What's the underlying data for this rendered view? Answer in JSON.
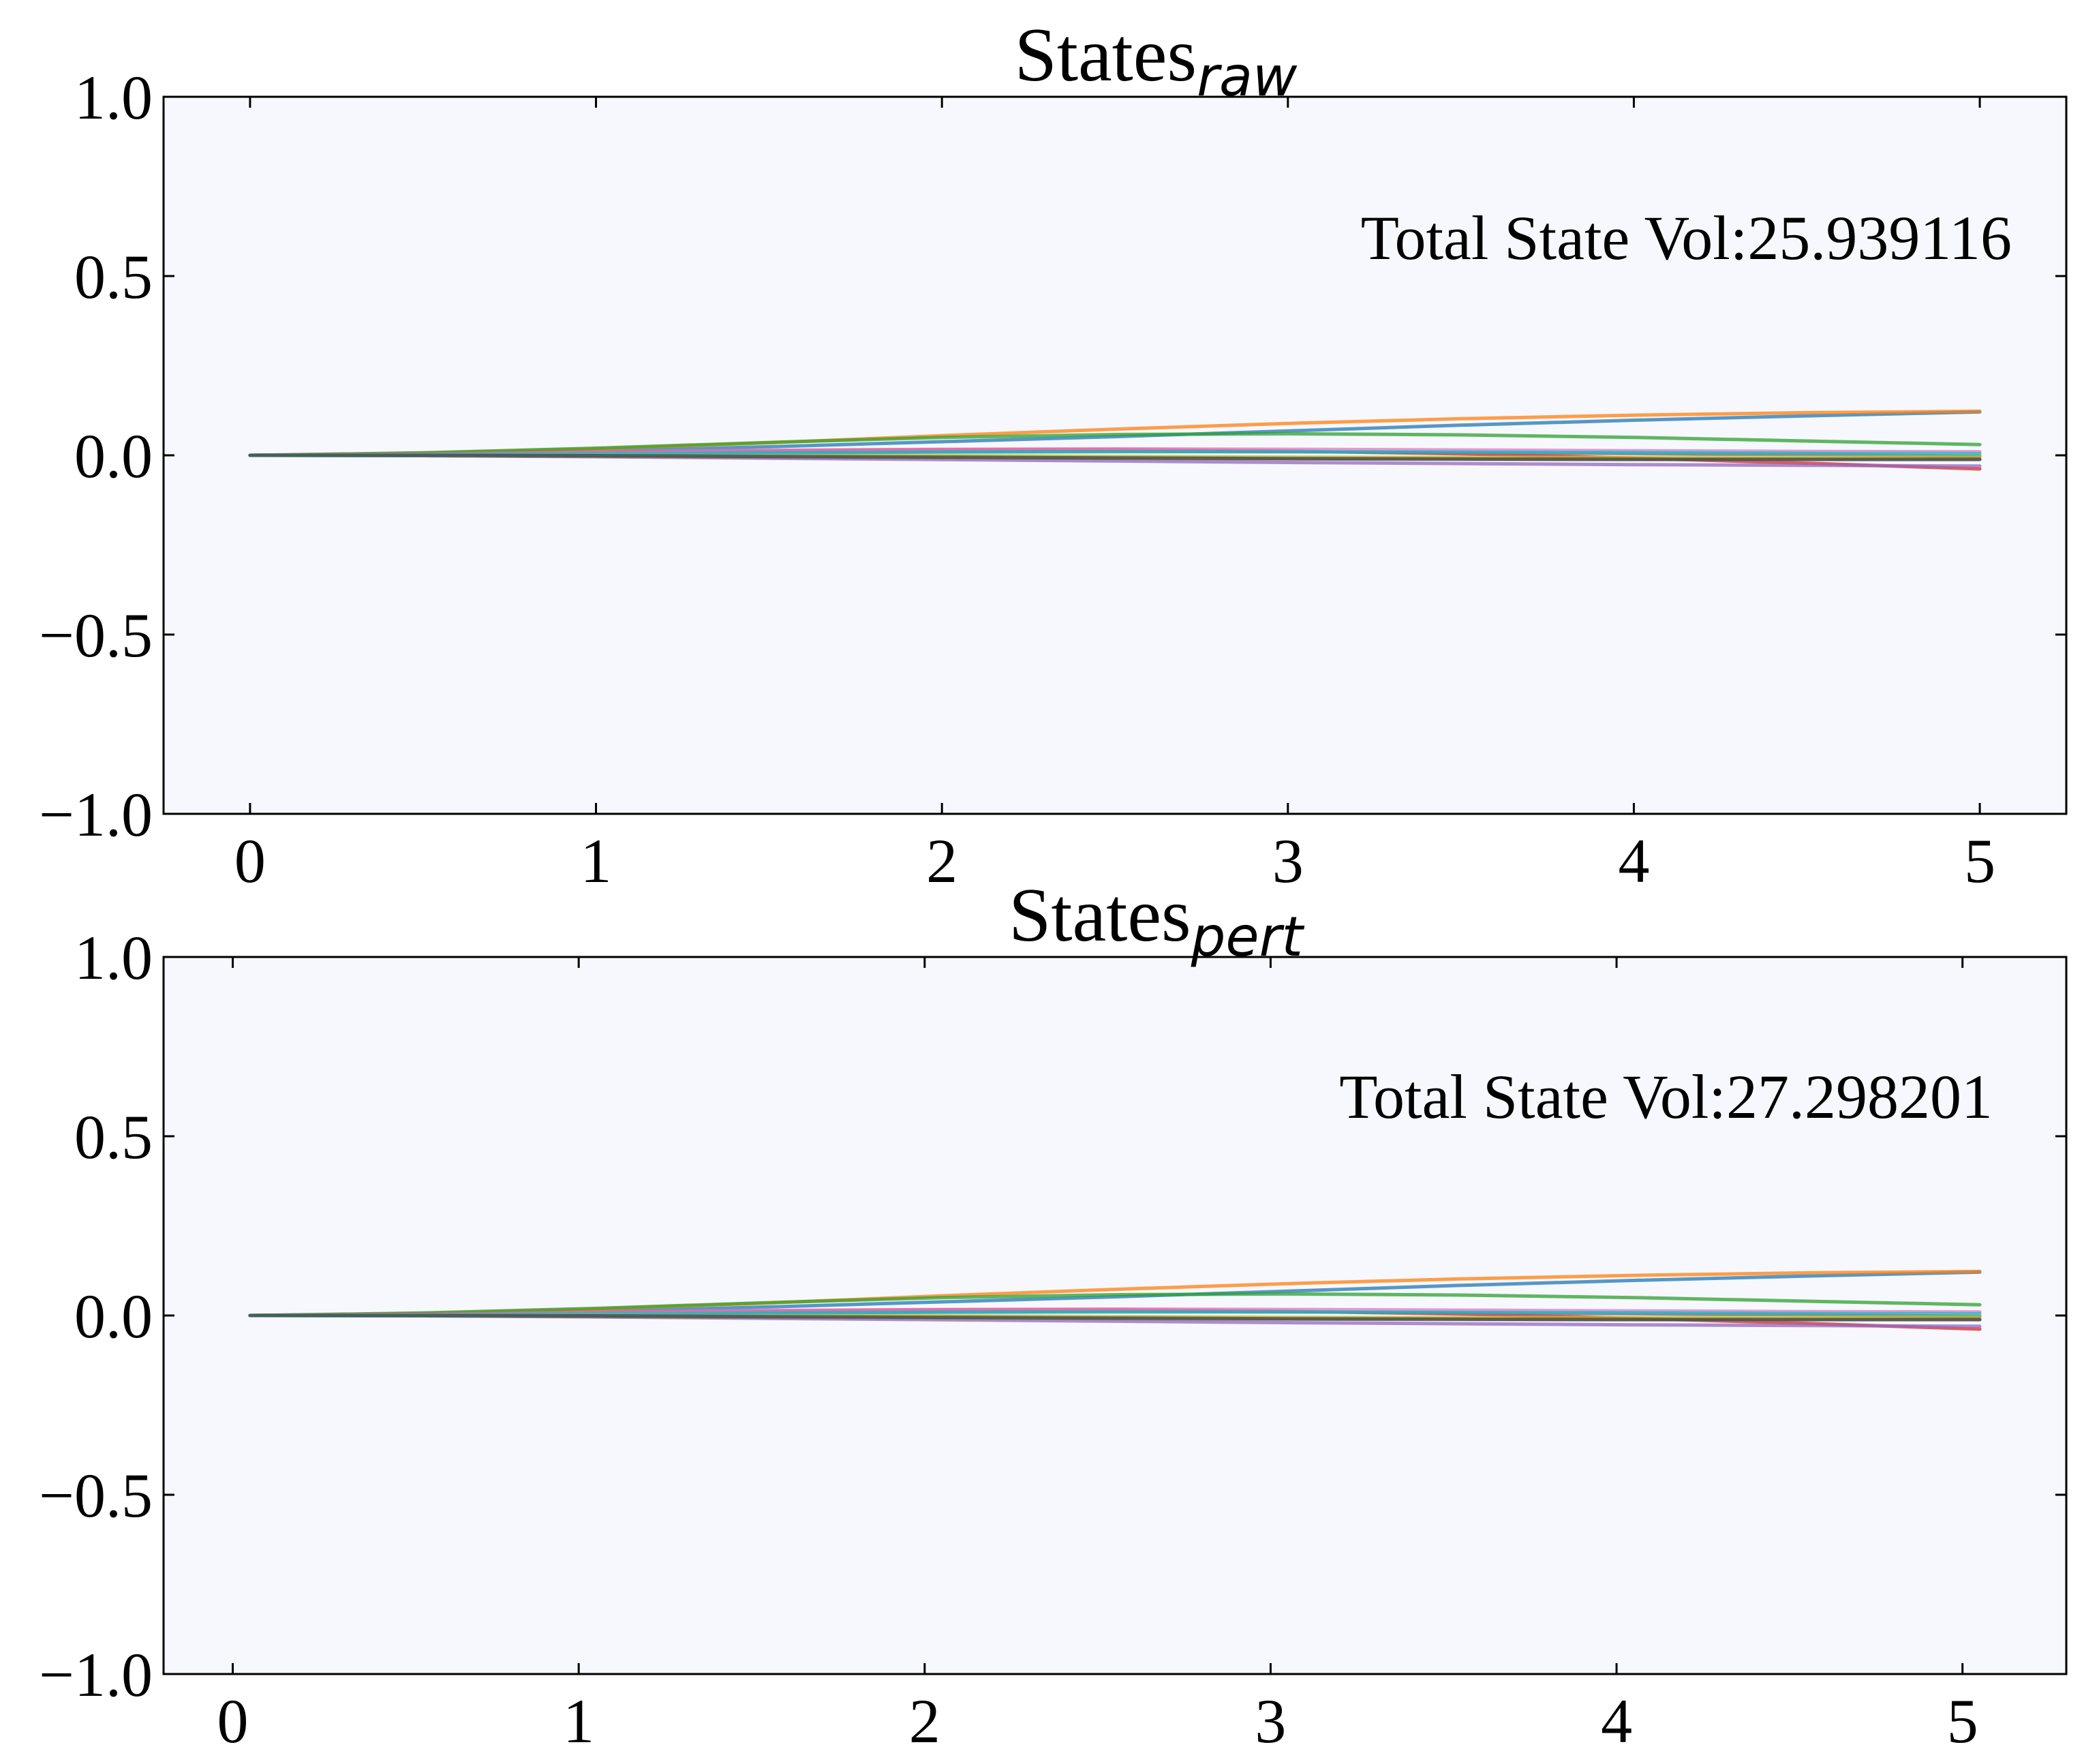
{
  "chart_data": [
    {
      "type": "line",
      "title": "States",
      "title_subscript": "raw",
      "annotation": "Total State Vol:25.939116",
      "xlim": [
        -0.25,
        5.25
      ],
      "ylim": [
        -1.0,
        1.0
      ],
      "xticks": [
        "0",
        "1",
        "2",
        "3",
        "4",
        "5"
      ],
      "yticks": [
        "1.0",
        "0.5",
        "0.0",
        "−0.5",
        "−1.0"
      ],
      "background": "#f7f8fd",
      "grid": false,
      "x": [
        0,
        0.5,
        1,
        1.5,
        2,
        2.5,
        3,
        3.5,
        4,
        4.5,
        5
      ],
      "series": [
        {
          "color": "#1f77b4",
          "values": [
            0,
            0.004,
            0.012,
            0.024,
            0.038,
            0.052,
            0.068,
            0.084,
            0.098,
            0.11,
            0.121
          ]
        },
        {
          "color": "#ff7f0e",
          "values": [
            0,
            0.006,
            0.018,
            0.035,
            0.055,
            0.073,
            0.089,
            0.102,
            0.112,
            0.119,
            0.123
          ]
        },
        {
          "color": "#2ca02c",
          "values": [
            0,
            0.007,
            0.02,
            0.036,
            0.05,
            0.058,
            0.06,
            0.057,
            0.05,
            0.04,
            0.03
          ]
        },
        {
          "color": "#d62728",
          "values": [
            0,
            0.003,
            0.008,
            0.013,
            0.016,
            0.016,
            0.012,
            0.004,
            -0.008,
            -0.022,
            -0.038
          ]
        },
        {
          "color": "#9467bd",
          "values": [
            0,
            -0.001,
            -0.004,
            -0.008,
            -0.012,
            -0.016,
            -0.02,
            -0.023,
            -0.026,
            -0.028,
            -0.03
          ]
        },
        {
          "color": "#8c564b",
          "values": [
            0,
            0.002,
            0.005,
            0.008,
            0.01,
            0.011,
            0.01,
            0.008,
            0.005,
            0.002,
            -0.002
          ]
        },
        {
          "color": "#e377c2",
          "values": [
            0,
            0.003,
            0.009,
            0.014,
            0.017,
            0.018,
            0.017,
            0.015,
            0.013,
            0.011,
            0.01
          ]
        },
        {
          "color": "#7f7f7f",
          "values": [
            0,
            -0.001,
            -0.003,
            -0.005,
            -0.007,
            -0.009,
            -0.01,
            -0.011,
            -0.012,
            -0.012,
            -0.012
          ]
        },
        {
          "color": "#bcbd22",
          "values": [
            0,
            0.001,
            0.002,
            0.001,
            -0.001,
            -0.003,
            -0.005,
            -0.006,
            -0.006,
            -0.005,
            -0.004
          ]
        },
        {
          "color": "#17becf",
          "values": [
            0,
            0.001,
            0.004,
            0.007,
            0.009,
            0.01,
            0.01,
            0.009,
            0.008,
            0.006,
            0.005
          ]
        },
        {
          "color": "#444444",
          "values": [
            0,
            0.0,
            -0.001,
            -0.003,
            -0.005,
            -0.007,
            -0.009,
            -0.01,
            -0.011,
            -0.011,
            -0.011
          ]
        }
      ]
    },
    {
      "type": "line",
      "title": "States",
      "title_subscript": "pert",
      "annotation": "Total State Vol:27.298201",
      "xlim": [
        -0.2,
        5.3
      ],
      "ylim": [
        -1.0,
        1.0
      ],
      "xticks": [
        "0",
        "1",
        "2",
        "3",
        "4",
        "5"
      ],
      "yticks": [
        "1.0",
        "0.5",
        "0.0",
        "−0.5",
        "−1.0"
      ],
      "background": "#f7f8fd",
      "grid": false,
      "x": [
        0.05,
        0.55,
        1.05,
        1.55,
        2.05,
        2.55,
        3.05,
        3.55,
        4.05,
        4.55,
        5.05
      ],
      "series": [
        {
          "color": "#1f77b4",
          "values": [
            0,
            0.004,
            0.012,
            0.024,
            0.038,
            0.052,
            0.068,
            0.084,
            0.098,
            0.11,
            0.121
          ]
        },
        {
          "color": "#ff7f0e",
          "values": [
            0,
            0.006,
            0.018,
            0.035,
            0.055,
            0.073,
            0.089,
            0.102,
            0.112,
            0.119,
            0.123
          ]
        },
        {
          "color": "#2ca02c",
          "values": [
            0,
            0.007,
            0.02,
            0.036,
            0.05,
            0.058,
            0.06,
            0.057,
            0.05,
            0.04,
            0.03
          ]
        },
        {
          "color": "#d62728",
          "values": [
            0,
            0.003,
            0.008,
            0.013,
            0.016,
            0.016,
            0.012,
            0.004,
            -0.008,
            -0.022,
            -0.038
          ]
        },
        {
          "color": "#9467bd",
          "values": [
            0,
            -0.001,
            -0.004,
            -0.008,
            -0.012,
            -0.016,
            -0.02,
            -0.023,
            -0.026,
            -0.028,
            -0.03
          ]
        },
        {
          "color": "#8c564b",
          "values": [
            0,
            0.002,
            0.005,
            0.008,
            0.01,
            0.011,
            0.01,
            0.008,
            0.005,
            0.002,
            -0.002
          ]
        },
        {
          "color": "#e377c2",
          "values": [
            0,
            0.003,
            0.009,
            0.014,
            0.017,
            0.018,
            0.017,
            0.015,
            0.013,
            0.011,
            0.01
          ]
        },
        {
          "color": "#7f7f7f",
          "values": [
            0,
            -0.001,
            -0.003,
            -0.005,
            -0.007,
            -0.009,
            -0.01,
            -0.011,
            -0.012,
            -0.012,
            -0.012
          ]
        },
        {
          "color": "#bcbd22",
          "values": [
            0,
            0.001,
            0.002,
            0.001,
            -0.001,
            -0.003,
            -0.005,
            -0.006,
            -0.006,
            -0.005,
            -0.004
          ]
        },
        {
          "color": "#17becf",
          "values": [
            0,
            0.001,
            0.004,
            0.007,
            0.009,
            0.01,
            0.01,
            0.009,
            0.008,
            0.006,
            0.005
          ]
        },
        {
          "color": "#444444",
          "values": [
            0,
            0.0,
            -0.001,
            -0.003,
            -0.005,
            -0.007,
            -0.009,
            -0.01,
            -0.011,
            -0.011,
            -0.011
          ]
        }
      ]
    }
  ]
}
